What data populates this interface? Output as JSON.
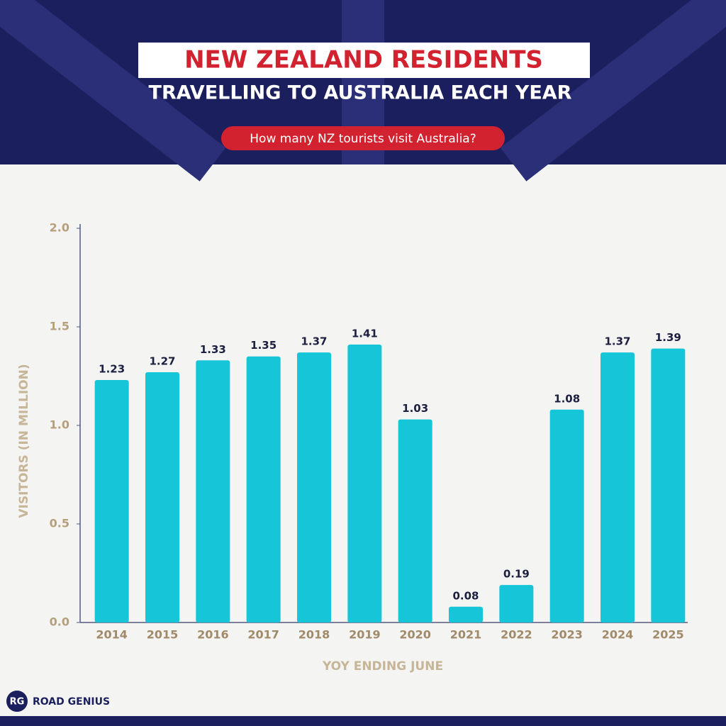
{
  "brand": {
    "logo": "RG",
    "name": "ROAD GENIUS"
  },
  "chart_data": {
    "type": "bar",
    "title": "NEW ZEALAND RESIDENTS",
    "subtitle": "TRAVELLING TO AUSTRALIA EACH YEAR",
    "question": "How many NZ tourists visit Australia?",
    "x_label": "YOY ENDING JUNE",
    "y_label": "VISITORS (IN MILLION)",
    "categories": [
      "2014",
      "2015",
      "2016",
      "2017",
      "2018",
      "2019",
      "2020",
      "2021",
      "2022",
      "2023",
      "2024",
      "2025"
    ],
    "values": [
      1.23,
      1.27,
      1.33,
      1.35,
      1.37,
      1.41,
      1.03,
      0.08,
      0.19,
      1.08,
      1.37,
      1.39
    ],
    "color": "#17c5d8",
    "ylim": [
      0,
      2
    ],
    "yticks": [
      {
        "value": 0,
        "label": "0.0"
      },
      0.5,
      {
        "value": 1,
        "label": "1.0"
      },
      1.5,
      {
        "value": 2,
        "label": "2.0"
      }
    ],
    "grid": false
  }
}
